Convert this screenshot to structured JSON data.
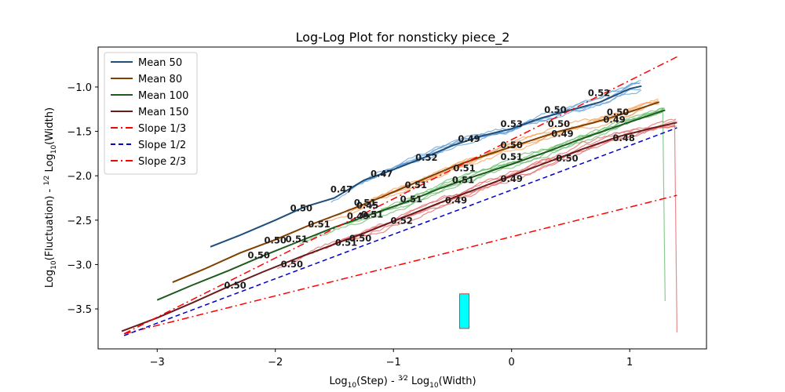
{
  "chart_data": {
    "type": "line",
    "title": "Log-Log Plot for nonsticky piece_2",
    "xlabel_parts": [
      "Log",
      "10",
      "(Step) - ",
      "3",
      "2",
      " Log",
      "10",
      "(Width)"
    ],
    "ylabel_parts": [
      "Log",
      "10",
      "(Fluctuation) - ",
      "1",
      "2",
      " Log",
      "10",
      "(Width)"
    ],
    "xlim": [
      -3.5,
      1.65
    ],
    "ylim": [
      -3.95,
      -0.55
    ],
    "xticks": [
      -3,
      -2,
      -1,
      0,
      1
    ],
    "xtick_labels": [
      "−3",
      "−2",
      "−1",
      "0",
      "1"
    ],
    "yticks": [
      -3.5,
      -3.0,
      -2.5,
      -2.0,
      -1.5,
      -1.0
    ],
    "ytick_labels": [
      "−3.5",
      "−3.0",
      "−2.5",
      "−2.0",
      "−1.5",
      "−1.0"
    ],
    "legend_position": "top-left",
    "series": [
      {
        "name": "Mean 50",
        "color": "#1f4e79",
        "raw_color": "#5b9bd5",
        "x": [
          -2.55,
          -2.3,
          -2.0,
          -1.75,
          -1.5,
          -1.25,
          -1.0,
          -0.75,
          -0.5,
          -0.25,
          0.0,
          0.25,
          0.5,
          0.75,
          1.0,
          1.1
        ],
        "y": [
          -2.8,
          -2.67,
          -2.5,
          -2.35,
          -2.25,
          -2.05,
          -1.93,
          -1.8,
          -1.66,
          -1.55,
          -1.47,
          -1.35,
          -1.26,
          -1.17,
          -1.02,
          -0.99
        ],
        "raw": true
      },
      {
        "name": "Mean 80",
        "color": "#7f3f00",
        "raw_color": "#f5a05a",
        "x": [
          -2.87,
          -2.6,
          -2.3,
          -2.0,
          -1.7,
          -1.4,
          -1.1,
          -0.8,
          -0.5,
          -0.2,
          0.1,
          0.4,
          0.7,
          1.0,
          1.25
        ],
        "y": [
          -3.2,
          -3.05,
          -2.87,
          -2.72,
          -2.55,
          -2.4,
          -2.24,
          -2.07,
          -1.9,
          -1.76,
          -1.63,
          -1.5,
          -1.4,
          -1.28,
          -1.17
        ],
        "raw": true
      },
      {
        "name": "Mean 100",
        "color": "#1e5a1e",
        "raw_color": "#66bb6a",
        "x": [
          -3.0,
          -2.7,
          -2.4,
          -2.1,
          -1.8,
          -1.5,
          -1.2,
          -0.9,
          -0.6,
          -0.3,
          0.0,
          0.3,
          0.6,
          0.9,
          1.3
        ],
        "y": [
          -3.4,
          -3.23,
          -3.07,
          -2.9,
          -2.74,
          -2.58,
          -2.44,
          -2.3,
          -2.14,
          -2.0,
          -1.87,
          -1.73,
          -1.58,
          -1.44,
          -1.26
        ],
        "raw": true
      },
      {
        "name": "Mean 150",
        "color": "#6b1a1a",
        "raw_color": "#e06666",
        "x": [
          -3.3,
          -3.0,
          -2.7,
          -2.4,
          -2.1,
          -1.8,
          -1.5,
          -1.2,
          -0.9,
          -0.6,
          -0.3,
          0.0,
          0.3,
          0.6,
          0.9,
          1.2,
          1.4
        ],
        "y": [
          -3.75,
          -3.6,
          -3.43,
          -3.25,
          -3.08,
          -2.92,
          -2.77,
          -2.62,
          -2.46,
          -2.3,
          -2.15,
          -2.0,
          -1.85,
          -1.7,
          -1.56,
          -1.46,
          -1.4
        ],
        "raw": true
      },
      {
        "name": "Slope 1/3",
        "color": "#ff0000",
        "style": "dashdot",
        "x": [
          -3.28,
          1.4
        ],
        "y": [
          -3.78,
          -2.22
        ]
      },
      {
        "name": "Slope 1/2",
        "color": "#0000cc",
        "style": "dashed",
        "x": [
          -3.28,
          1.4
        ],
        "y": [
          -3.8,
          -1.46
        ]
      },
      {
        "name": "Slope 2/3",
        "color": "#ff0000",
        "style": "dashdot",
        "x": [
          -3.28,
          1.4
        ],
        "y": [
          -3.78,
          -0.66
        ]
      }
    ],
    "annotations": [
      {
        "text": "0.52",
        "x": 0.74,
        "y": -1.1
      },
      {
        "text": "0.50",
        "x": 0.37,
        "y": -1.29
      },
      {
        "text": "0.53",
        "x": 0.0,
        "y": -1.45
      },
      {
        "text": "0.49",
        "x": -0.36,
        "y": -1.62
      },
      {
        "text": "0.52",
        "x": -0.72,
        "y": -1.83
      },
      {
        "text": "0.47",
        "x": -1.1,
        "y": -2.01
      },
      {
        "text": "0.47",
        "x": -1.44,
        "y": -2.19
      },
      {
        "text": "0.50",
        "x": -1.78,
        "y": -2.4
      },
      {
        "text": "0.50",
        "x": 0.9,
        "y": -1.32
      },
      {
        "text": "0.49",
        "x": 0.87,
        "y": -1.4
      },
      {
        "text": "0.50",
        "x": 0.4,
        "y": -1.45
      },
      {
        "text": "0.49",
        "x": 0.43,
        "y": -1.56
      },
      {
        "text": "0.50",
        "x": 0.0,
        "y": -1.69
      },
      {
        "text": "0.51",
        "x": 0.0,
        "y": -1.82
      },
      {
        "text": "0.51",
        "x": -0.4,
        "y": -1.95
      },
      {
        "text": "0.51",
        "x": -0.41,
        "y": -2.08
      },
      {
        "text": "0.51",
        "x": -0.81,
        "y": -2.14
      },
      {
        "text": "0.51",
        "x": -0.85,
        "y": -2.3
      },
      {
        "text": "0.51",
        "x": -1.24,
        "y": -2.34
      },
      {
        "text": "0.45",
        "x": -1.22,
        "y": -2.37
      },
      {
        "text": "0.51",
        "x": -1.18,
        "y": -2.47
      },
      {
        "text": "0.49",
        "x": -1.3,
        "y": -2.49
      },
      {
        "text": "0.51",
        "x": -1.63,
        "y": -2.58
      },
      {
        "text": "0.51",
        "x": -1.82,
        "y": -2.75
      },
      {
        "text": "0.50",
        "x": -2.0,
        "y": -2.76
      },
      {
        "text": "0.50",
        "x": -1.28,
        "y": -2.74
      },
      {
        "text": "0.51",
        "x": -1.4,
        "y": -2.79
      },
      {
        "text": "0.52",
        "x": -0.93,
        "y": -2.54
      },
      {
        "text": "0.49",
        "x": -0.47,
        "y": -2.31
      },
      {
        "text": "0.49",
        "x": 0.0,
        "y": -2.07
      },
      {
        "text": "0.50",
        "x": 0.47,
        "y": -1.84
      },
      {
        "text": "0.48",
        "x": 0.95,
        "y": -1.61
      },
      {
        "text": "0.50",
        "x": -2.14,
        "y": -2.93
      },
      {
        "text": "0.50",
        "x": -1.86,
        "y": -3.03
      },
      {
        "text": "0.50",
        "x": -2.34,
        "y": -3.27
      }
    ],
    "marker_rect": {
      "x": [
        -0.44,
        -0.36
      ],
      "y": [
        -3.72,
        -3.33
      ],
      "fill": "#00ffff",
      "stroke": "#d04040"
    }
  }
}
